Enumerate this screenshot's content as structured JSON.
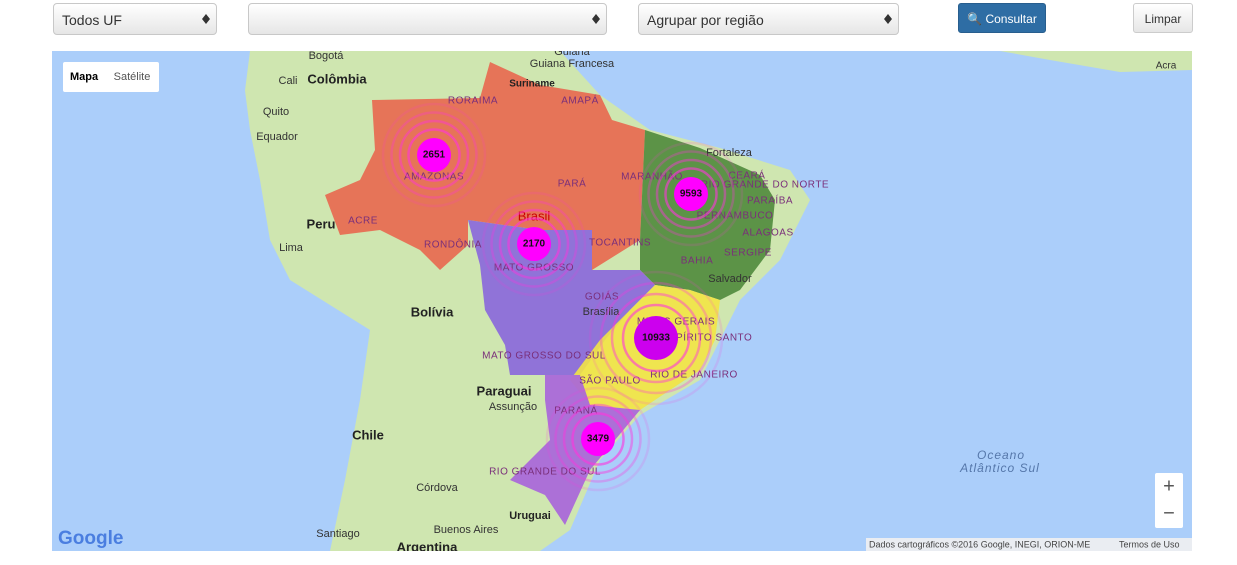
{
  "toolbar": {
    "uf_select": "Todos UF",
    "group_select": "Agrupar por região",
    "consult_button": "Consultar",
    "clear_button": "Limpar"
  },
  "map_type": [
    "Mapa",
    "Satélite"
  ],
  "place_labels": [
    "Bogotá",
    "Colômbia",
    "Cali",
    "Quito",
    "Equador",
    "Peru",
    "Lima",
    "Bolívia",
    "Chile",
    "Paraguai",
    "Assunção",
    "Córdova",
    "Santiago",
    "Buenos Aires",
    "Uruguai",
    "Argentina",
    "Guiana",
    "Guiana Francesa",
    "Suriname",
    "Fortaleza",
    "Salvador",
    "Brasília",
    "Brasil",
    "Oceano",
    "Atlântico Sul",
    "Acra"
  ],
  "state_labels": [
    "RORAIMA",
    "AMAPÁ",
    "AMAZONAS",
    "PARÁ",
    "ACRE",
    "RONDÔNIA",
    "TOCANTINS",
    "MARANHÃO",
    "CEARÁ",
    "RIO GRANDE DO NORTE",
    "PARAÍBA",
    "PERNAMBUCO",
    "ALAGOAS",
    "SERGIPE",
    "BAHIA",
    "MATO GROSSO",
    "GOIÁS",
    "MINAS GERAIS",
    "ESPÍRITO SANTO",
    "MATO GROSSO DO SUL",
    "SÃO PAULO",
    "RIO DE JANEIRO",
    "PARANÁ",
    "RIO GRANDE DO SUL"
  ],
  "clusters": [
    "2651",
    "9593",
    "2170",
    "10933",
    "3479"
  ],
  "zoom": [
    "+",
    "−"
  ],
  "logo": "Google",
  "attribution": "Dados cartográficos ©2016 Google, INEGI, ORION-ME",
  "terms": "Termos de Uso"
}
